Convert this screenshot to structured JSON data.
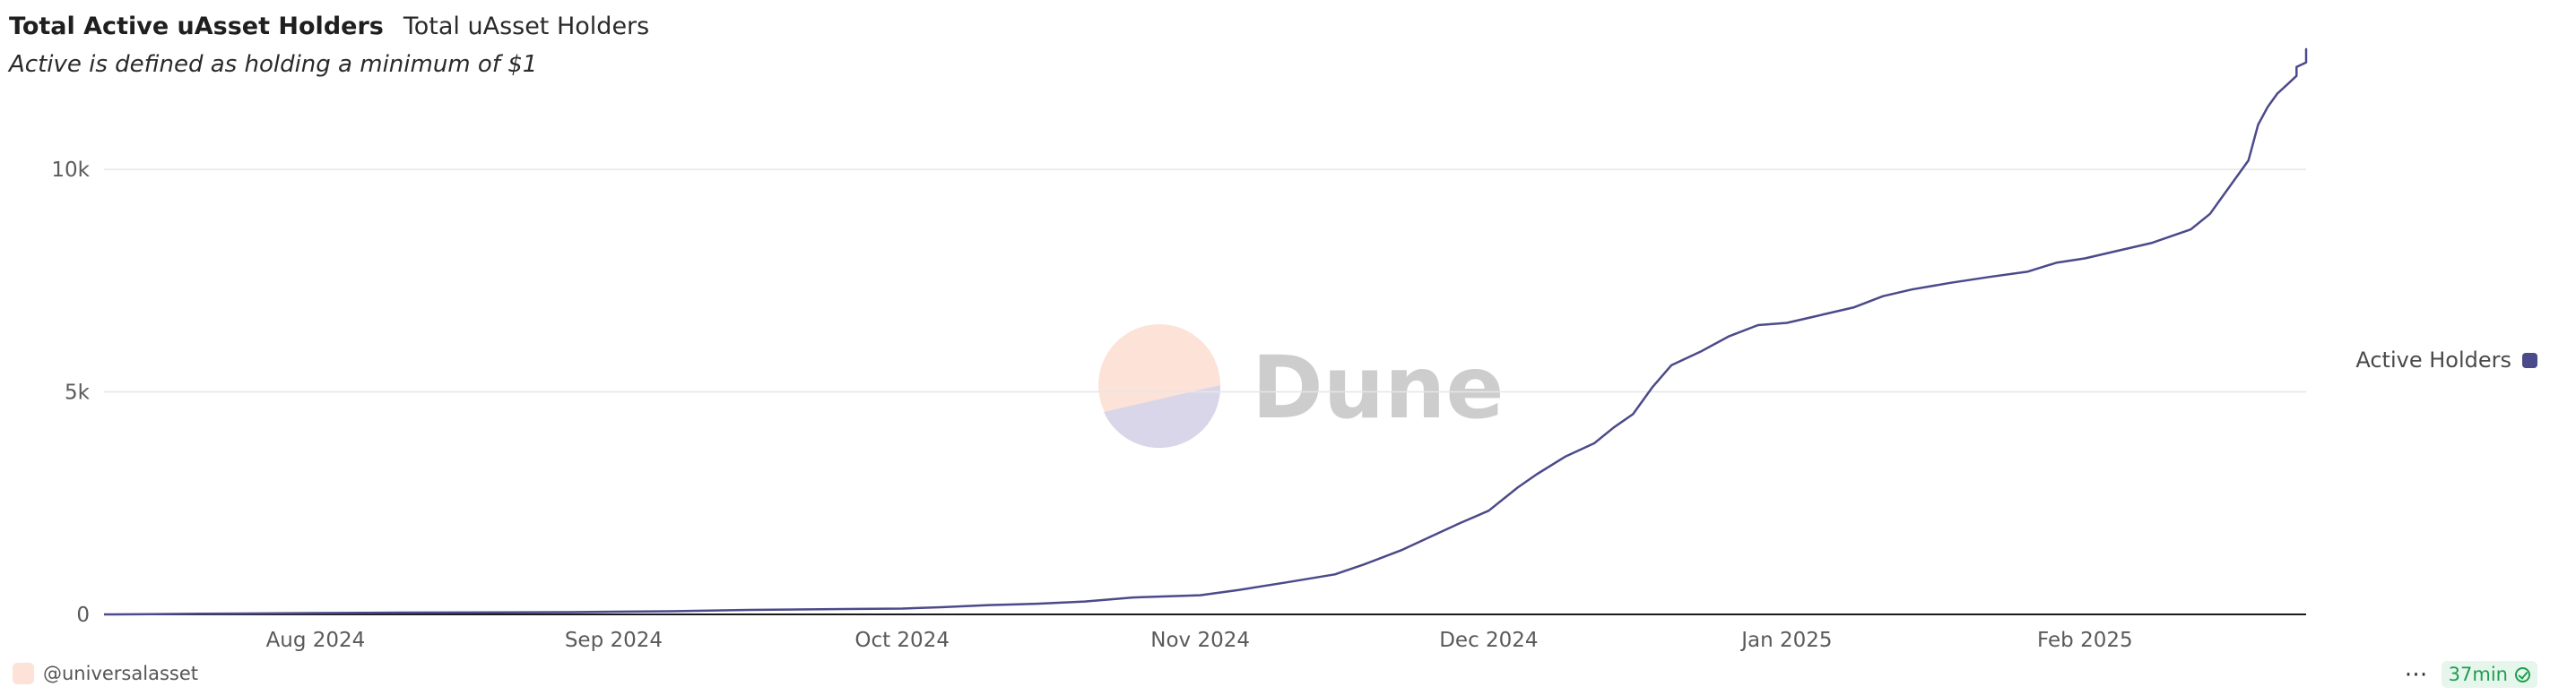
{
  "header": {
    "title": "Total Active uAsset Holders",
    "tab_label": "Total uAsset Holders",
    "subtitle": "Active is defined as holding a minimum of $1"
  },
  "watermark": {
    "text": "Dune"
  },
  "footer": {
    "owner": "@universalasset",
    "more_label": "⋯",
    "refresh_label": "37min"
  },
  "colors": {
    "line": "#4b4a8a",
    "grid": "#e6e6e6",
    "axis": "#1a1a1a",
    "accent": "#1e9e4f"
  },
  "chart_data": {
    "type": "line",
    "title": "Total Active uAsset Holders",
    "subtitle": "Active is defined as holding a minimum of $1",
    "xlabel": "",
    "ylabel": "",
    "x_type": "date",
    "xlim": [
      "2024-07-10",
      "2025-02-24"
    ],
    "ylim": [
      0,
      13000
    ],
    "y_ticks": [
      0,
      5000,
      10000
    ],
    "y_tick_labels": [
      "0",
      "5k",
      "10k"
    ],
    "x_ticks": [
      "2024-08-01",
      "2024-09-01",
      "2024-10-01",
      "2024-11-01",
      "2024-12-01",
      "2025-01-01",
      "2025-02-01"
    ],
    "x_tick_labels": [
      "Aug 2024",
      "Sep 2024",
      "Oct 2024",
      "Nov 2024",
      "Dec 2024",
      "Jan 2025",
      "Feb 2025"
    ],
    "grid": true,
    "legend_position": "right",
    "series": [
      {
        "name": "Active Holders",
        "color": "#4b4a8a",
        "points": [
          [
            "2024-07-10",
            0
          ],
          [
            "2024-07-15",
            5
          ],
          [
            "2024-07-20",
            15
          ],
          [
            "2024-07-25",
            20
          ],
          [
            "2024-08-01",
            30
          ],
          [
            "2024-08-10",
            40
          ],
          [
            "2024-08-20",
            45
          ],
          [
            "2024-08-27",
            50
          ],
          [
            "2024-09-01",
            60
          ],
          [
            "2024-09-07",
            70
          ],
          [
            "2024-09-15",
            100
          ],
          [
            "2024-09-25",
            120
          ],
          [
            "2024-10-01",
            130
          ],
          [
            "2024-10-05",
            160
          ],
          [
            "2024-10-10",
            210
          ],
          [
            "2024-10-15",
            240
          ],
          [
            "2024-10-20",
            290
          ],
          [
            "2024-10-25",
            380
          ],
          [
            "2024-11-01",
            430
          ],
          [
            "2024-11-05",
            550
          ],
          [
            "2024-11-10",
            720
          ],
          [
            "2024-11-15",
            900
          ],
          [
            "2024-11-18",
            1120
          ],
          [
            "2024-11-22",
            1450
          ],
          [
            "2024-11-25",
            1750
          ],
          [
            "2024-11-28",
            2050
          ],
          [
            "2024-12-01",
            2330
          ],
          [
            "2024-12-04",
            2850
          ],
          [
            "2024-12-06",
            3150
          ],
          [
            "2024-12-09",
            3550
          ],
          [
            "2024-12-12",
            3850
          ],
          [
            "2024-12-14",
            4200
          ],
          [
            "2024-12-16",
            4500
          ],
          [
            "2024-12-18",
            5100
          ],
          [
            "2024-12-20",
            5600
          ],
          [
            "2024-12-23",
            5900
          ],
          [
            "2024-12-26",
            6250
          ],
          [
            "2024-12-29",
            6500
          ],
          [
            "2025-01-01",
            6550
          ],
          [
            "2025-01-04",
            6700
          ],
          [
            "2025-01-08",
            6900
          ],
          [
            "2025-01-11",
            7150
          ],
          [
            "2025-01-14",
            7300
          ],
          [
            "2025-01-18",
            7450
          ],
          [
            "2025-01-22",
            7580
          ],
          [
            "2025-01-26",
            7700
          ],
          [
            "2025-01-29",
            7900
          ],
          [
            "2025-02-01",
            8000
          ],
          [
            "2025-02-04",
            8150
          ],
          [
            "2025-02-08",
            8350
          ],
          [
            "2025-02-10",
            8500
          ],
          [
            "2025-02-12",
            8650
          ],
          [
            "2025-02-14",
            9000
          ],
          [
            "2025-02-15",
            9300
          ],
          [
            "2025-02-16",
            9600
          ],
          [
            "2025-02-18",
            10200
          ],
          [
            "2025-02-19",
            11000
          ],
          [
            "2025-02-20",
            11400
          ],
          [
            "2025-02-21",
            11700
          ],
          [
            "2025-02-22",
            11900
          ],
          [
            "2025-02-23",
            12100
          ],
          [
            "2025-02-23",
            12300
          ],
          [
            "2025-02-24",
            12400
          ],
          [
            "2025-02-24",
            12700
          ],
          [
            "2025-02-24",
            12680
          ]
        ]
      }
    ]
  }
}
